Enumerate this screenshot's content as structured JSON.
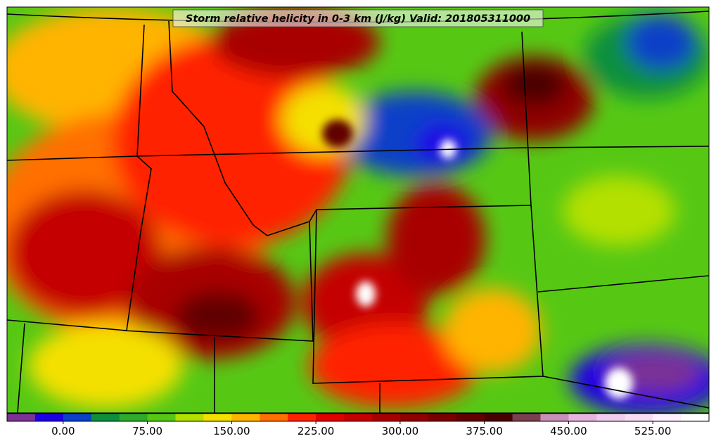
{
  "title": "Storm relative helicity in 0-3 km (J/kg) Valid: 201805311000",
  "colorbar": {
    "colors": [
      "#7b3294",
      "#1c00e6",
      "#0a40c8",
      "#0f8f3c",
      "#2cab2c",
      "#56c814",
      "#b4e000",
      "#f4e000",
      "#ffb400",
      "#ff7000",
      "#ff2200",
      "#e00000",
      "#c40000",
      "#a80000",
      "#900000",
      "#780000",
      "#600000",
      "#480000",
      "#7a4050",
      "#c890b8",
      "#e6b4de",
      "#f2ccee",
      "#f8dcf6",
      "#fff0ff",
      "#ffffff"
    ],
    "labels": [
      "0.00",
      "75.00",
      "150.00",
      "225.00",
      "300.00",
      "375.00",
      "450.00",
      "525.00"
    ]
  }
}
